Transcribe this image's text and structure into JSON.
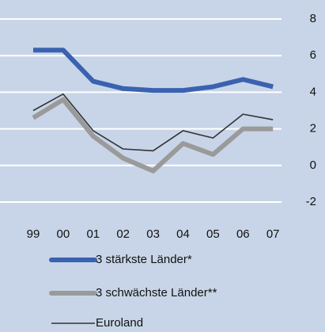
{
  "chart_data": {
    "type": "line",
    "categories": [
      "99",
      "00",
      "01",
      "02",
      "03",
      "04",
      "05",
      "06",
      "07"
    ],
    "series": [
      {
        "name": "3 stärkste Länder*",
        "color": "#3a62b0",
        "width": 6,
        "values": [
          6.3,
          6.3,
          4.6,
          4.2,
          4.1,
          4.1,
          4.3,
          4.7,
          4.3
        ]
      },
      {
        "name": "3 schwächste Länder**",
        "color": "#9a9a9a",
        "width": 6,
        "values": [
          2.6,
          3.6,
          1.6,
          0.4,
          -0.3,
          1.2,
          0.6,
          2.0,
          2.0
        ]
      },
      {
        "name": "Euroland",
        "color": "#333333",
        "width": 1.6,
        "values": [
          3.0,
          3.9,
          1.9,
          0.9,
          0.8,
          1.9,
          1.5,
          2.8,
          2.5
        ]
      }
    ],
    "ylim": [
      -2,
      8
    ],
    "yticks": [
      -2,
      0,
      2,
      4,
      6,
      8
    ],
    "grid": true,
    "axis_side": "right"
  }
}
